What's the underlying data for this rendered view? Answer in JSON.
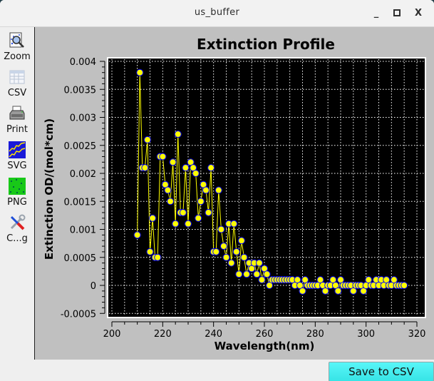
{
  "window": {
    "title": "us_buffer",
    "minimize_label": "_",
    "maximize_label": "□",
    "close_label": "X"
  },
  "sidebar": {
    "items": [
      {
        "label": "Zoom",
        "icon": "zoom-icon"
      },
      {
        "label": "CSV",
        "icon": "csv-icon"
      },
      {
        "label": "Print",
        "icon": "printer-icon"
      },
      {
        "label": "SVG",
        "icon": "svg-icon"
      },
      {
        "label": "PNG",
        "icon": "png-icon"
      },
      {
        "label": "C...g",
        "icon": "config-icon"
      }
    ]
  },
  "footer": {
    "save_label": "Save to CSV"
  },
  "colors": {
    "plot_bg": "#000000",
    "panel_bg": "#c0c0c0",
    "line": "#ffff00",
    "marker_fill": "#ffff00",
    "marker_edge": "#0000ff",
    "grid": "#ffffff",
    "save_button": "#40eef0"
  },
  "chart_data": {
    "type": "line",
    "title": "Extinction Profile",
    "xlabel": "Wavelength(nm)",
    "ylabel": "Extinction OD/(mol*cm)",
    "xlim": [
      200,
      320
    ],
    "ylim": [
      -0.0005,
      0.004
    ],
    "xticks": [
      200,
      220,
      240,
      260,
      280,
      300,
      320
    ],
    "yticks": [
      -0.0005,
      0,
      0.0005,
      0.001,
      0.0015,
      0.002,
      0.0025,
      0.003,
      0.0035,
      0.004
    ],
    "ytick_labels": [
      "-0.0005",
      "0",
      "0.0005",
      "0.001",
      "0.0015",
      "0.002",
      "0.0025",
      "0.003",
      "0.0035",
      "0.004"
    ],
    "grid": true,
    "legend": null,
    "x": [
      210,
      211,
      212,
      213,
      214,
      215,
      216,
      217,
      218,
      219,
      220,
      221,
      222,
      223,
      224,
      225,
      226,
      227,
      228,
      229,
      230,
      231,
      232,
      233,
      234,
      235,
      236,
      237,
      238,
      239,
      240,
      241,
      242,
      243,
      244,
      245,
      246,
      247,
      248,
      249,
      250,
      251,
      252,
      253,
      254,
      255,
      256,
      257,
      258,
      259,
      260,
      261,
      262,
      263,
      264,
      265,
      266,
      267,
      268,
      269,
      270,
      271,
      272,
      273,
      274,
      275,
      276,
      277,
      278,
      279,
      280,
      281,
      282,
      283,
      284,
      285,
      286,
      287,
      288,
      289,
      290,
      291,
      292,
      293,
      294,
      295,
      296,
      297,
      298,
      299,
      300,
      301,
      302,
      303,
      304,
      305,
      306,
      307,
      308,
      309,
      310,
      311,
      312,
      313,
      314,
      315
    ],
    "series": [
      {
        "name": "Extinction",
        "values": [
          0.0009,
          0.0038,
          0.0021,
          0.0021,
          0.0026,
          0.0006,
          0.0012,
          0.0005,
          0.0005,
          0.0023,
          0.0023,
          0.0018,
          0.0017,
          0.0015,
          0.0022,
          0.0011,
          0.0027,
          0.0013,
          0.0013,
          0.0021,
          0.0011,
          0.0022,
          0.0021,
          0.002,
          0.0012,
          0.0015,
          0.0018,
          0.0017,
          0.0013,
          0.0021,
          0.0006,
          0.0006,
          0.0017,
          0.001,
          0.0007,
          0.0005,
          0.0011,
          0.0004,
          0.0011,
          0.0006,
          0.0002,
          0.0008,
          0.0005,
          0.0002,
          0.0004,
          0.0003,
          0.0004,
          0.0002,
          0.0004,
          0.0001,
          0.0003,
          0.0002,
          0.0,
          0.0001,
          0.0001,
          0.0001,
          0.0001,
          0.0001,
          0.0001,
          0.0001,
          0.0001,
          0.0001,
          0.0,
          0.0001,
          0.0,
          -0.0001,
          0.0001,
          0.0,
          0.0,
          0.0,
          0.0,
          0.0,
          0.0001,
          0.0,
          -0.0001,
          0.0,
          0.0,
          0.0001,
          0.0,
          -0.0001,
          0.0001,
          0.0,
          0.0,
          0.0,
          0.0,
          -0.0001,
          0.0,
          0.0,
          0.0,
          -0.0001,
          0.0,
          0.0001,
          0.0,
          0.0,
          0.0001,
          0.0,
          0.0001,
          0.0,
          0.0001,
          0.0,
          0.0,
          0.0001,
          0.0,
          0.0,
          0.0,
          0.0
        ]
      }
    ]
  }
}
